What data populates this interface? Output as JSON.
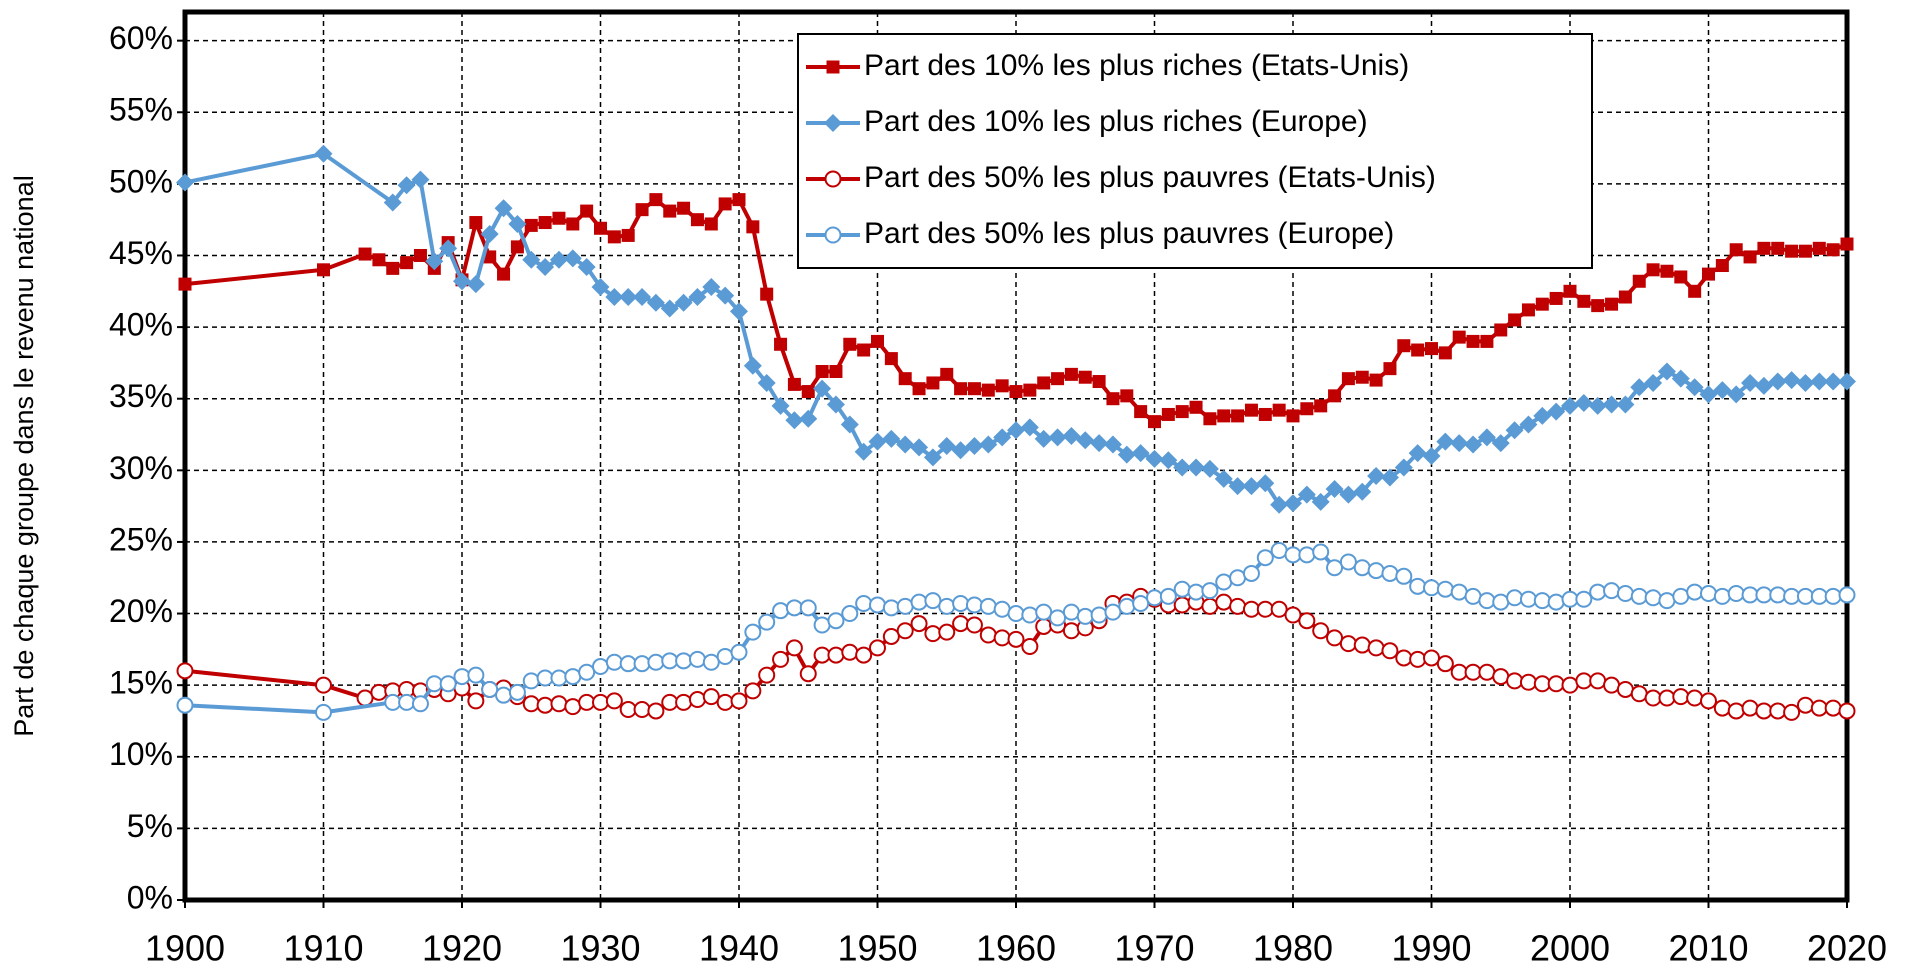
{
  "chart_data": {
    "type": "line",
    "y_label": "Part de chaque groupe dans le revenu national",
    "xlim": [
      1900,
      2020
    ],
    "xticks": [
      1900,
      1910,
      1920,
      1930,
      1940,
      1950,
      1960,
      1970,
      1980,
      1990,
      2000,
      2010,
      2020
    ],
    "ylim": [
      0,
      62
    ],
    "yticks": [
      {
        "value": 0,
        "label": "0%"
      },
      {
        "value": 5,
        "label": "5%"
      },
      {
        "value": 10,
        "label": "10%"
      },
      {
        "value": 15,
        "label": "15%"
      },
      {
        "value": 20,
        "label": "20%"
      },
      {
        "value": 25,
        "label": "25%"
      },
      {
        "value": 30,
        "label": "30%"
      },
      {
        "value": 35,
        "label": "35%"
      },
      {
        "value": 40,
        "label": "40%"
      },
      {
        "value": 45,
        "label": "45%"
      },
      {
        "value": 50,
        "label": "50%"
      },
      {
        "value": 55,
        "label": "55%"
      },
      {
        "value": 60,
        "label": "60%"
      }
    ],
    "grid": true,
    "legend": "top-right",
    "series": [
      {
        "name": "Part des 10% les plus riches (Etats-Unis)",
        "color": "#c00000",
        "marker": "square",
        "x": [
          1900,
          1910,
          1913,
          1914,
          1915,
          1916,
          1917,
          1918,
          1919,
          1920,
          1921,
          1922,
          1923,
          1924,
          1925,
          1926,
          1927,
          1928,
          1929,
          1930,
          1931,
          1932,
          1933,
          1934,
          1935,
          1936,
          1937,
          1938,
          1939,
          1940,
          1941,
          1942,
          1943,
          1944,
          1945,
          1946,
          1947,
          1948,
          1949,
          1950,
          1951,
          1952,
          1953,
          1954,
          1955,
          1956,
          1957,
          1958,
          1959,
          1960,
          1961,
          1962,
          1963,
          1964,
          1965,
          1966,
          1967,
          1968,
          1969,
          1970,
          1971,
          1972,
          1973,
          1974,
          1975,
          1976,
          1977,
          1978,
          1979,
          1980,
          1981,
          1982,
          1983,
          1984,
          1985,
          1986,
          1987,
          1988,
          1989,
          1990,
          1991,
          1992,
          1993,
          1994,
          1995,
          1996,
          1997,
          1998,
          1999,
          2000,
          2001,
          2002,
          2003,
          2004,
          2005,
          2006,
          2007,
          2008,
          2009,
          2010,
          2011,
          2012,
          2013,
          2014,
          2015,
          2016,
          2017,
          2018,
          2019,
          2020
        ],
        "values": [
          43.0,
          44.0,
          45.1,
          44.7,
          44.1,
          44.5,
          45.0,
          44.1,
          45.9,
          43.3,
          47.3,
          44.9,
          43.7,
          45.6,
          47.1,
          47.3,
          47.6,
          47.2,
          48.1,
          46.9,
          46.3,
          46.4,
          48.2,
          48.9,
          48.1,
          48.3,
          47.5,
          47.2,
          48.6,
          48.9,
          47.0,
          42.3,
          38.8,
          36.0,
          35.5,
          36.9,
          36.9,
          38.8,
          38.4,
          39.0,
          37.8,
          36.4,
          35.7,
          36.1,
          36.7,
          35.7,
          35.7,
          35.6,
          35.9,
          35.5,
          35.6,
          36.1,
          36.4,
          36.7,
          36.5,
          36.2,
          35.0,
          35.2,
          34.1,
          33.4,
          33.9,
          34.1,
          34.4,
          33.6,
          33.8,
          33.8,
          34.2,
          33.9,
          34.2,
          33.8,
          34.3,
          34.5,
          35.2,
          36.4,
          36.5,
          36.3,
          37.1,
          38.7,
          38.4,
          38.5,
          38.2,
          39.3,
          39.0,
          39.0,
          39.8,
          40.5,
          41.2,
          41.6,
          42.0,
          42.5,
          41.8,
          41.5,
          41.6,
          42.1,
          43.2,
          44.0,
          43.9,
          43.5,
          42.5,
          43.7,
          44.3,
          45.4,
          44.9,
          45.5,
          45.5,
          45.3,
          45.3,
          45.5,
          45.4,
          45.8
        ]
      },
      {
        "name": "Part des 10% les plus riches (Europe)",
        "color": "#5b9bd5",
        "marker": "diamond",
        "x": [
          1900,
          1910,
          1915,
          1916,
          1917,
          1918,
          1919,
          1920,
          1921,
          1922,
          1923,
          1924,
          1925,
          1926,
          1927,
          1928,
          1929,
          1930,
          1931,
          1932,
          1933,
          1934,
          1935,
          1936,
          1937,
          1938,
          1939,
          1940,
          1941,
          1942,
          1943,
          1944,
          1945,
          1946,
          1947,
          1948,
          1949,
          1950,
          1951,
          1952,
          1953,
          1954,
          1955,
          1956,
          1957,
          1958,
          1959,
          1960,
          1961,
          1962,
          1963,
          1964,
          1965,
          1966,
          1967,
          1968,
          1969,
          1970,
          1971,
          1972,
          1973,
          1974,
          1975,
          1976,
          1977,
          1978,
          1979,
          1980,
          1981,
          1982,
          1983,
          1984,
          1985,
          1986,
          1987,
          1988,
          1989,
          1990,
          1991,
          1992,
          1993,
          1994,
          1995,
          1996,
          1997,
          1998,
          1999,
          2000,
          2001,
          2002,
          2003,
          2004,
          2005,
          2006,
          2007,
          2008,
          2009,
          2010,
          2011,
          2012,
          2013,
          2014,
          2015,
          2016,
          2017,
          2018,
          2019,
          2020
        ],
        "values": [
          50.1,
          52.1,
          48.7,
          49.9,
          50.3,
          44.6,
          45.5,
          43.2,
          43.0,
          46.5,
          48.3,
          47.2,
          44.7,
          44.2,
          44.7,
          44.8,
          44.2,
          42.8,
          42.1,
          42.1,
          42.1,
          41.7,
          41.3,
          41.7,
          42.1,
          42.8,
          42.2,
          41.1,
          37.3,
          36.1,
          34.5,
          33.5,
          33.6,
          35.7,
          34.6,
          33.2,
          31.3,
          32.0,
          32.2,
          31.8,
          31.6,
          30.9,
          31.7,
          31.4,
          31.7,
          31.8,
          32.3,
          32.8,
          33.0,
          32.2,
          32.3,
          32.4,
          32.1,
          31.9,
          31.8,
          31.1,
          31.2,
          30.8,
          30.7,
          30.2,
          30.2,
          30.1,
          29.4,
          28.9,
          28.9,
          29.1,
          27.6,
          27.7,
          28.3,
          27.8,
          28.7,
          28.3,
          28.5,
          29.6,
          29.5,
          30.2,
          31.2,
          31.0,
          32.0,
          31.9,
          31.8,
          32.3,
          31.9,
          32.8,
          33.2,
          33.8,
          34.1,
          34.5,
          34.7,
          34.5,
          34.6,
          34.6,
          35.8,
          36.1,
          36.9,
          36.4,
          35.8,
          35.3,
          35.6,
          35.3,
          36.1,
          35.9,
          36.2,
          36.3,
          36.1,
          36.2,
          36.2,
          36.2
        ]
      },
      {
        "name": "Part des 50% les plus pauvres (Etats-Unis)",
        "color": "#c00000",
        "marker": "circle",
        "x": [
          1900,
          1910,
          1913,
          1914,
          1915,
          1916,
          1917,
          1918,
          1919,
          1920,
          1921,
          1922,
          1923,
          1924,
          1925,
          1926,
          1927,
          1928,
          1929,
          1930,
          1931,
          1932,
          1933,
          1934,
          1935,
          1936,
          1937,
          1938,
          1939,
          1940,
          1941,
          1942,
          1943,
          1944,
          1945,
          1946,
          1947,
          1948,
          1949,
          1950,
          1951,
          1952,
          1953,
          1954,
          1955,
          1956,
          1957,
          1958,
          1959,
          1960,
          1961,
          1962,
          1963,
          1964,
          1965,
          1966,
          1967,
          1968,
          1969,
          1970,
          1971,
          1972,
          1973,
          1974,
          1975,
          1976,
          1977,
          1978,
          1979,
          1980,
          1981,
          1982,
          1983,
          1984,
          1985,
          1986,
          1987,
          1988,
          1989,
          1990,
          1991,
          1992,
          1993,
          1994,
          1995,
          1996,
          1997,
          1998,
          1999,
          2000,
          2001,
          2002,
          2003,
          2004,
          2005,
          2006,
          2007,
          2008,
          2009,
          2010,
          2011,
          2012,
          2013,
          2014,
          2015,
          2016,
          2017,
          2018,
          2019,
          2020
        ],
        "values": [
          16.0,
          15.0,
          14.1,
          14.5,
          14.6,
          14.7,
          14.6,
          14.7,
          14.4,
          14.8,
          13.9,
          14.7,
          14.8,
          14.2,
          13.7,
          13.6,
          13.7,
          13.5,
          13.8,
          13.8,
          13.9,
          13.3,
          13.3,
          13.2,
          13.8,
          13.8,
          14.0,
          14.2,
          13.8,
          13.9,
          14.6,
          15.7,
          16.8,
          17.6,
          15.8,
          17.1,
          17.1,
          17.3,
          17.1,
          17.6,
          18.4,
          18.8,
          19.3,
          18.6,
          18.7,
          19.3,
          19.2,
          18.5,
          18.3,
          18.2,
          17.7,
          19.1,
          19.2,
          18.8,
          19.0,
          19.5,
          20.7,
          20.8,
          21.2,
          21.0,
          20.6,
          20.6,
          20.8,
          20.5,
          20.8,
          20.5,
          20.3,
          20.3,
          20.3,
          19.9,
          19.5,
          18.8,
          18.3,
          17.9,
          17.8,
          17.6,
          17.4,
          16.9,
          16.8,
          16.9,
          16.5,
          15.9,
          15.9,
          15.9,
          15.6,
          15.3,
          15.2,
          15.1,
          15.1,
          15.0,
          15.3,
          15.3,
          15.0,
          14.7,
          14.4,
          14.1,
          14.1,
          14.2,
          14.1,
          13.9,
          13.4,
          13.2,
          13.4,
          13.2,
          13.2,
          13.1,
          13.6,
          13.4,
          13.4,
          13.2
        ]
      },
      {
        "name": "Part des 50% les plus pauvres (Europe)",
        "color": "#5b9bd5",
        "marker": "circle",
        "x": [
          1900,
          1910,
          1915,
          1916,
          1917,
          1918,
          1919,
          1920,
          1921,
          1922,
          1923,
          1924,
          1925,
          1926,
          1927,
          1928,
          1929,
          1930,
          1931,
          1932,
          1933,
          1934,
          1935,
          1936,
          1937,
          1938,
          1939,
          1940,
          1941,
          1942,
          1943,
          1944,
          1945,
          1946,
          1947,
          1948,
          1949,
          1950,
          1951,
          1952,
          1953,
          1954,
          1955,
          1956,
          1957,
          1958,
          1959,
          1960,
          1961,
          1962,
          1963,
          1964,
          1965,
          1966,
          1967,
          1968,
          1969,
          1970,
          1971,
          1972,
          1973,
          1974,
          1975,
          1976,
          1977,
          1978,
          1979,
          1980,
          1981,
          1982,
          1983,
          1984,
          1985,
          1986,
          1987,
          1988,
          1989,
          1990,
          1991,
          1992,
          1993,
          1994,
          1995,
          1996,
          1997,
          1998,
          1999,
          2000,
          2001,
          2002,
          2003,
          2004,
          2005,
          2006,
          2007,
          2008,
          2009,
          2010,
          2011,
          2012,
          2013,
          2014,
          2015,
          2016,
          2017,
          2018,
          2019,
          2020
        ],
        "values": [
          13.6,
          13.1,
          13.8,
          13.8,
          13.7,
          15.1,
          15.1,
          15.6,
          15.7,
          14.7,
          14.3,
          14.5,
          15.3,
          15.5,
          15.5,
          15.6,
          15.9,
          16.3,
          16.6,
          16.5,
          16.5,
          16.6,
          16.7,
          16.7,
          16.8,
          16.6,
          17.0,
          17.3,
          18.7,
          19.4,
          20.2,
          20.4,
          20.4,
          19.2,
          19.5,
          20.0,
          20.7,
          20.6,
          20.4,
          20.5,
          20.8,
          20.9,
          20.5,
          20.7,
          20.6,
          20.5,
          20.3,
          20.0,
          19.9,
          20.1,
          19.7,
          20.1,
          19.8,
          19.9,
          20.1,
          20.5,
          20.7,
          21.1,
          21.2,
          21.7,
          21.5,
          21.6,
          22.2,
          22.5,
          22.8,
          23.9,
          24.4,
          24.1,
          24.1,
          24.3,
          23.2,
          23.6,
          23.2,
          23.0,
          22.8,
          22.6,
          21.9,
          21.8,
          21.7,
          21.5,
          21.2,
          20.9,
          20.8,
          21.1,
          21.0,
          20.9,
          20.8,
          21.0,
          21.0,
          21.5,
          21.6,
          21.4,
          21.2,
          21.1,
          20.9,
          21.2,
          21.5,
          21.4,
          21.2,
          21.4,
          21.3,
          21.3,
          21.3,
          21.2,
          21.2,
          21.2,
          21.2,
          21.3
        ]
      }
    ]
  }
}
